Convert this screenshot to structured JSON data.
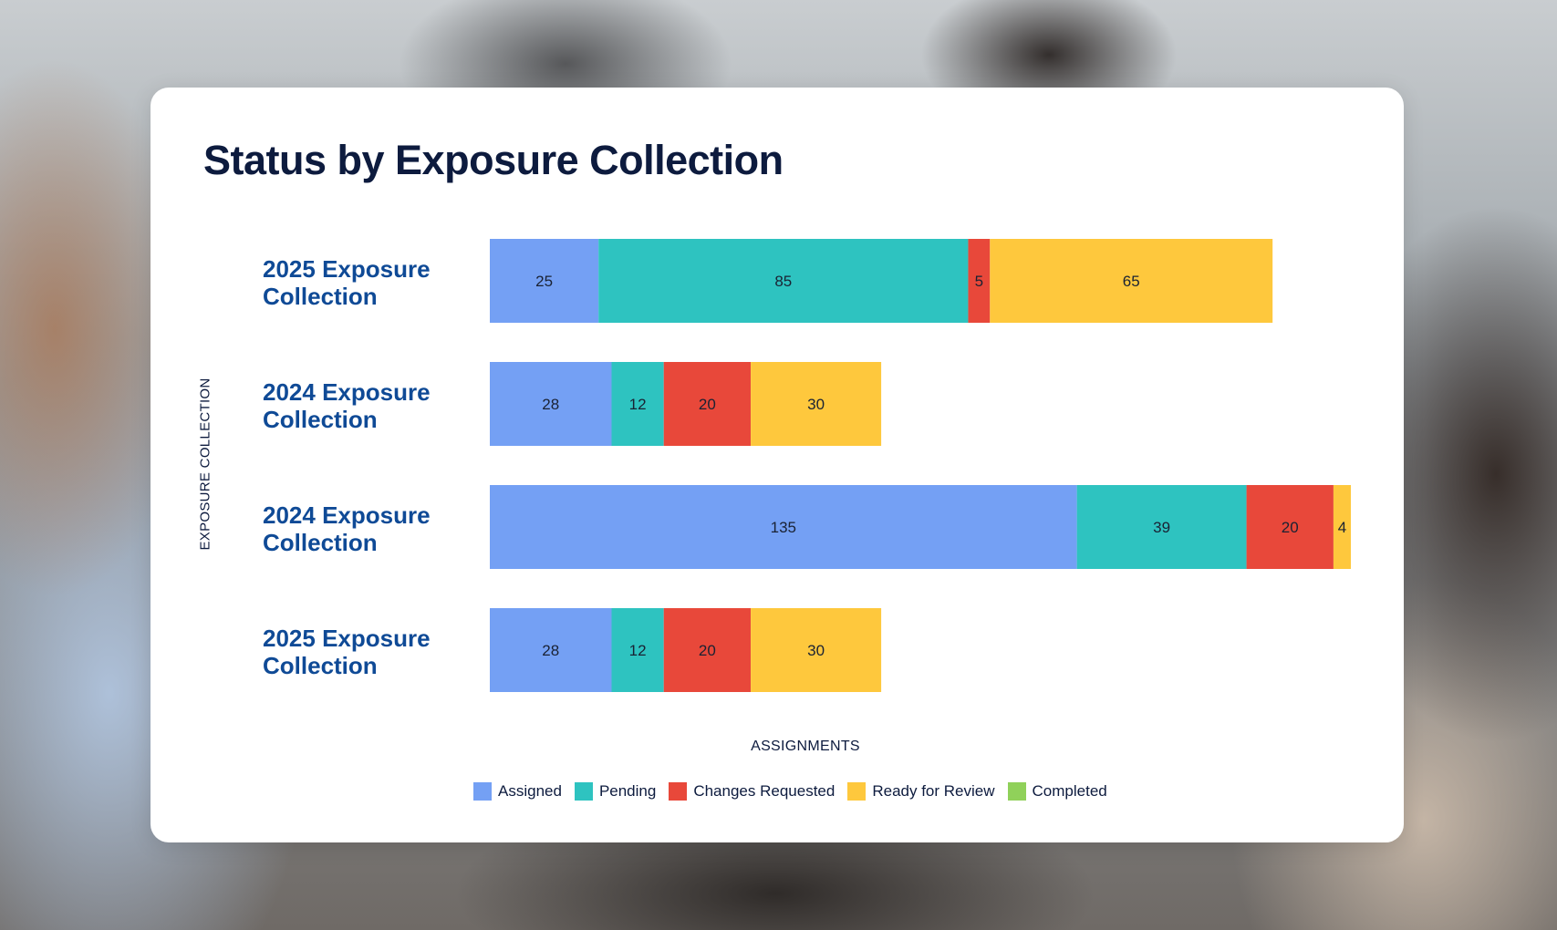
{
  "chart_data": {
    "type": "bar",
    "orientation": "horizontal",
    "stacked": true,
    "title": "Status by Exposure Collection",
    "xlabel": "ASSIGNMENTS",
    "ylabel": "EXPOSURE COLLECTION",
    "categories": [
      "2025 Exposure Collection",
      "2024 Exposure Collection",
      "2024 Exposure Collection",
      "2025 Exposure Collection"
    ],
    "series": [
      {
        "name": "Assigned",
        "color": "#74a0f4",
        "values": [
          25,
          28,
          135,
          28
        ]
      },
      {
        "name": "Pending",
        "color": "#2ec3c0",
        "values": [
          85,
          12,
          39,
          12
        ]
      },
      {
        "name": "Changes Requested",
        "color": "#e8483a",
        "values": [
          5,
          20,
          20,
          20
        ]
      },
      {
        "name": "Ready for Review",
        "color": "#fec83d",
        "values": [
          65,
          30,
          4,
          30
        ]
      },
      {
        "name": "Completed",
        "color": "#90d15a",
        "values": [
          0,
          0,
          0,
          0
        ]
      }
    ],
    "xlim": [
      0,
      198
    ],
    "grid": false,
    "legend_position": "bottom",
    "category_label_color": "#0f4a96"
  }
}
